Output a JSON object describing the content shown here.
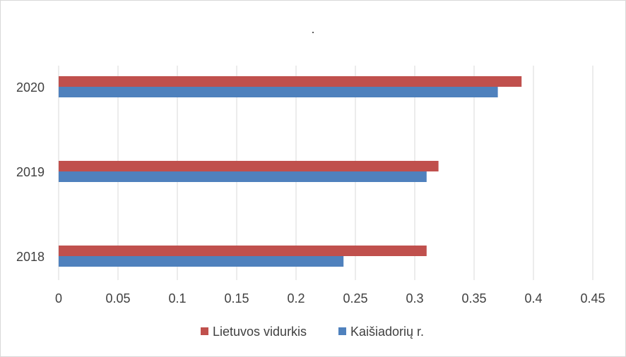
{
  "chart_data": {
    "type": "bar",
    "orientation": "horizontal",
    "title": ".",
    "categories": [
      "2018",
      "2019",
      "2020"
    ],
    "series": [
      {
        "name": "Lietuvos vidurkis",
        "values": [
          0.31,
          0.32,
          0.39
        ],
        "color": "#c0504d"
      },
      {
        "name": "Kaišiadorių r.",
        "values": [
          0.24,
          0.31,
          0.37
        ],
        "color": "#4f81bd"
      }
    ],
    "x_ticks": [
      "0",
      "0.05",
      "0.1",
      "0.15",
      "0.2",
      "0.25",
      "0.3",
      "0.35",
      "0.4",
      "0.45"
    ],
    "xlim": [
      0,
      0.45
    ],
    "grid": true,
    "legend_position": "bottom"
  }
}
